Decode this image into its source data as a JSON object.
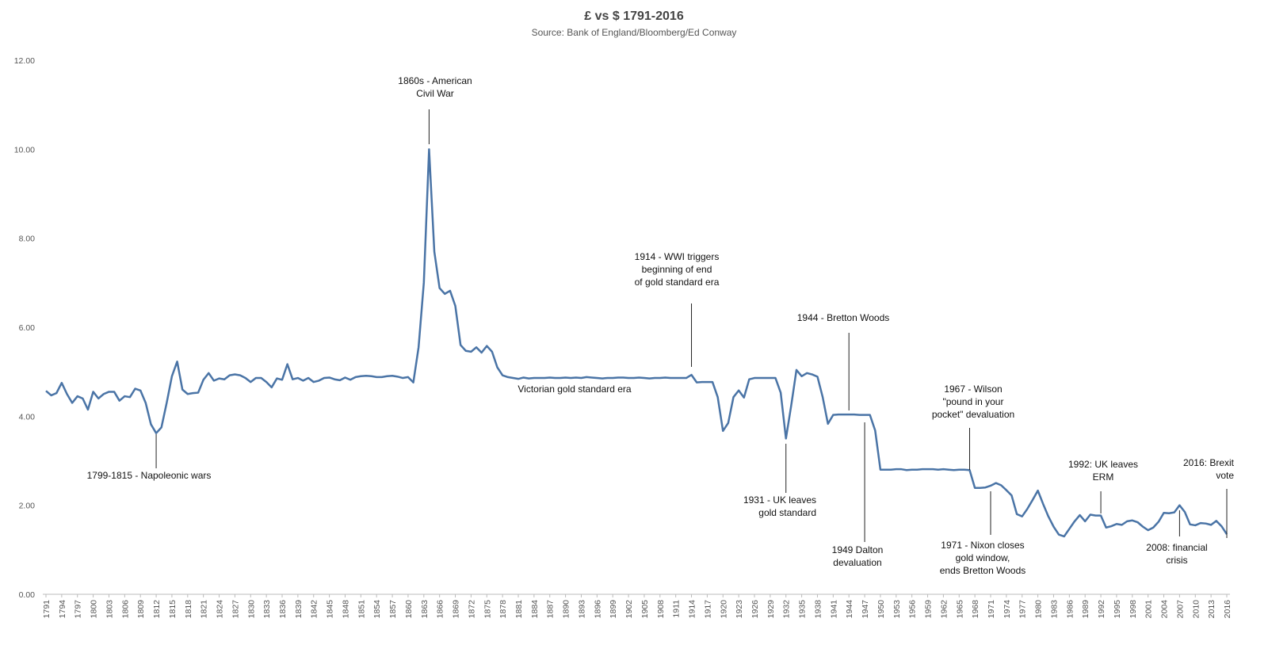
{
  "chart_data": {
    "type": "line",
    "title": "£ vs $ 1791-2016",
    "subtitle": "Source: Bank of England/Bloomberg/Ed Conway",
    "color": "#4a74a6",
    "x": [
      1791,
      1792,
      1793,
      1794,
      1795,
      1796,
      1797,
      1798,
      1799,
      1800,
      1801,
      1802,
      1803,
      1804,
      1805,
      1806,
      1807,
      1808,
      1809,
      1810,
      1811,
      1812,
      1813,
      1814,
      1815,
      1816,
      1817,
      1818,
      1819,
      1820,
      1821,
      1822,
      1823,
      1824,
      1825,
      1826,
      1827,
      1828,
      1829,
      1830,
      1831,
      1832,
      1833,
      1834,
      1835,
      1836,
      1837,
      1838,
      1839,
      1840,
      1841,
      1842,
      1843,
      1844,
      1845,
      1846,
      1847,
      1848,
      1849,
      1850,
      1851,
      1852,
      1853,
      1854,
      1855,
      1856,
      1857,
      1858,
      1859,
      1860,
      1861,
      1862,
      1863,
      1864,
      1865,
      1866,
      1867,
      1868,
      1869,
      1870,
      1871,
      1872,
      1873,
      1874,
      1875,
      1876,
      1877,
      1878,
      1879,
      1880,
      1881,
      1882,
      1883,
      1884,
      1885,
      1886,
      1887,
      1888,
      1889,
      1890,
      1891,
      1892,
      1893,
      1894,
      1895,
      1896,
      1897,
      1898,
      1899,
      1900,
      1901,
      1902,
      1903,
      1904,
      1905,
      1906,
      1907,
      1908,
      1909,
      1910,
      1911,
      1912,
      1913,
      1914,
      1915,
      1916,
      1917,
      1918,
      1919,
      1920,
      1921,
      1922,
      1923,
      1924,
      1925,
      1926,
      1927,
      1928,
      1929,
      1930,
      1931,
      1932,
      1933,
      1934,
      1935,
      1936,
      1937,
      1938,
      1939,
      1940,
      1941,
      1942,
      1943,
      1944,
      1945,
      1946,
      1947,
      1948,
      1949,
      1950,
      1951,
      1952,
      1953,
      1954,
      1955,
      1956,
      1957,
      1958,
      1959,
      1960,
      1961,
      1962,
      1963,
      1964,
      1965,
      1966,
      1967,
      1968,
      1969,
      1970,
      1971,
      1972,
      1973,
      1974,
      1975,
      1976,
      1977,
      1978,
      1979,
      1980,
      1981,
      1982,
      1983,
      1984,
      1985,
      1986,
      1987,
      1988,
      1989,
      1990,
      1991,
      1992,
      1993,
      1994,
      1995,
      1996,
      1997,
      1998,
      1999,
      2000,
      2001,
      2002,
      2003,
      2004,
      2005,
      2006,
      2007,
      2008,
      2009,
      2010,
      2011,
      2012,
      2013,
      2014,
      2015,
      2016
    ],
    "values": [
      4.57,
      4.47,
      4.52,
      4.75,
      4.5,
      4.3,
      4.45,
      4.4,
      4.15,
      4.55,
      4.4,
      4.5,
      4.55,
      4.55,
      4.35,
      4.45,
      4.43,
      4.62,
      4.58,
      4.3,
      3.82,
      3.62,
      3.75,
      4.3,
      4.9,
      5.23,
      4.6,
      4.5,
      4.52,
      4.53,
      4.82,
      4.97,
      4.8,
      4.85,
      4.83,
      4.92,
      4.94,
      4.92,
      4.86,
      4.77,
      4.86,
      4.86,
      4.77,
      4.65,
      4.85,
      4.82,
      5.17,
      4.83,
      4.86,
      4.8,
      4.86,
      4.77,
      4.8,
      4.86,
      4.87,
      4.83,
      4.81,
      4.87,
      4.82,
      4.88,
      4.9,
      4.91,
      4.9,
      4.88,
      4.88,
      4.9,
      4.91,
      4.89,
      4.86,
      4.88,
      4.76,
      5.55,
      7.0,
      10.0,
      7.7,
      6.88,
      6.75,
      6.82,
      6.48,
      5.6,
      5.47,
      5.45,
      5.55,
      5.43,
      5.58,
      5.45,
      5.1,
      4.92,
      4.88,
      4.86,
      4.84,
      4.87,
      4.85,
      4.86,
      4.86,
      4.86,
      4.87,
      4.86,
      4.86,
      4.87,
      4.86,
      4.87,
      4.86,
      4.88,
      4.87,
      4.86,
      4.85,
      4.86,
      4.86,
      4.87,
      4.87,
      4.86,
      4.86,
      4.87,
      4.86,
      4.85,
      4.86,
      4.86,
      4.87,
      4.86,
      4.86,
      4.86,
      4.86,
      4.93,
      4.76,
      4.77,
      4.77,
      4.77,
      4.43,
      3.67,
      3.85,
      4.43,
      4.58,
      4.42,
      4.83,
      4.86,
      4.86,
      4.86,
      4.86,
      4.86,
      4.53,
      3.5,
      4.24,
      5.04,
      4.9,
      4.97,
      4.94,
      4.89,
      4.43,
      3.83,
      4.03,
      4.04,
      4.04,
      4.04,
      4.04,
      4.03,
      4.03,
      4.03,
      3.68,
      2.8,
      2.8,
      2.8,
      2.81,
      2.81,
      2.79,
      2.8,
      2.8,
      2.81,
      2.81,
      2.81,
      2.8,
      2.81,
      2.8,
      2.79,
      2.8,
      2.8,
      2.79,
      2.39,
      2.39,
      2.4,
      2.44,
      2.5,
      2.45,
      2.34,
      2.22,
      1.8,
      1.75,
      1.92,
      2.12,
      2.33,
      2.03,
      1.75,
      1.52,
      1.34,
      1.3,
      1.47,
      1.64,
      1.78,
      1.64,
      1.79,
      1.77,
      1.77,
      1.5,
      1.53,
      1.58,
      1.56,
      1.64,
      1.66,
      1.62,
      1.52,
      1.44,
      1.5,
      1.63,
      1.83,
      1.82,
      1.84,
      2.0,
      1.85,
      1.57,
      1.55,
      1.6,
      1.59,
      1.56,
      1.65,
      1.53,
      1.35
    ],
    "xlim": [
      1791,
      2016
    ],
    "xticks": [
      1791,
      1794,
      1797,
      1800,
      1803,
      1806,
      1809,
      1812,
      1815,
      1818,
      1821,
      1824,
      1827,
      1830,
      1833,
      1836,
      1839,
      1842,
      1845,
      1848,
      1851,
      1854,
      1857,
      1860,
      1863,
      1866,
      1869,
      1872,
      1875,
      1878,
      1881,
      1884,
      1887,
      1890,
      1893,
      1896,
      1899,
      1902,
      1905,
      1908,
      1911,
      1914,
      1917,
      1920,
      1923,
      1926,
      1929,
      1932,
      1935,
      1938,
      1941,
      1944,
      1947,
      1950,
      1953,
      1956,
      1959,
      1962,
      1965,
      1968,
      1971,
      1974,
      1977,
      1980,
      1983,
      1986,
      1989,
      1992,
      1995,
      1998,
      2001,
      2004,
      2007,
      2010,
      2013,
      2016
    ],
    "ylim": [
      0,
      12
    ],
    "yticks": [
      {
        "value": 0,
        "label": "0.00"
      },
      {
        "value": 2,
        "label": "2.00"
      },
      {
        "value": 4,
        "label": "4.00"
      },
      {
        "value": 6,
        "label": "6.00"
      },
      {
        "value": 8,
        "label": "8.00"
      },
      {
        "value": 10,
        "label": "10.00"
      },
      {
        "value": 12,
        "label": "12.00"
      }
    ],
    "grid": false,
    "annotations": [
      {
        "text": [
          "1860s - American",
          "Civil War"
        ],
        "x": 1864
      },
      {
        "text": [
          "1799-1815 - Napoleonic wars"
        ],
        "x": 1812
      },
      {
        "text": [
          "Victorian gold standard era"
        ]
      },
      {
        "text": [
          "1914 - WWI triggers",
          "beginning of end",
          "of gold standard era"
        ],
        "x": 1914
      },
      {
        "text": [
          "1944 - Bretton Woods"
        ],
        "x": 1944
      },
      {
        "text": [
          "1931 - UK leaves",
          "gold standard"
        ],
        "x": 1932
      },
      {
        "text": [
          "1949 Dalton",
          "devaluation"
        ],
        "x": 1947
      },
      {
        "text": [
          "1967 - Wilson",
          "\"pound in your",
          "pocket\" devaluation"
        ],
        "x": 1967
      },
      {
        "text": [
          "1971 - Nixon closes",
          "gold window,",
          "ends Bretton Woods"
        ],
        "x": 1971
      },
      {
        "text": [
          "1992: UK leaves",
          "ERM"
        ],
        "x": 1992
      },
      {
        "text": [
          "2008: financial",
          "crisis"
        ],
        "x": 2007
      },
      {
        "text": [
          "2016: Brexit",
          "vote"
        ],
        "x": 2016
      }
    ]
  }
}
